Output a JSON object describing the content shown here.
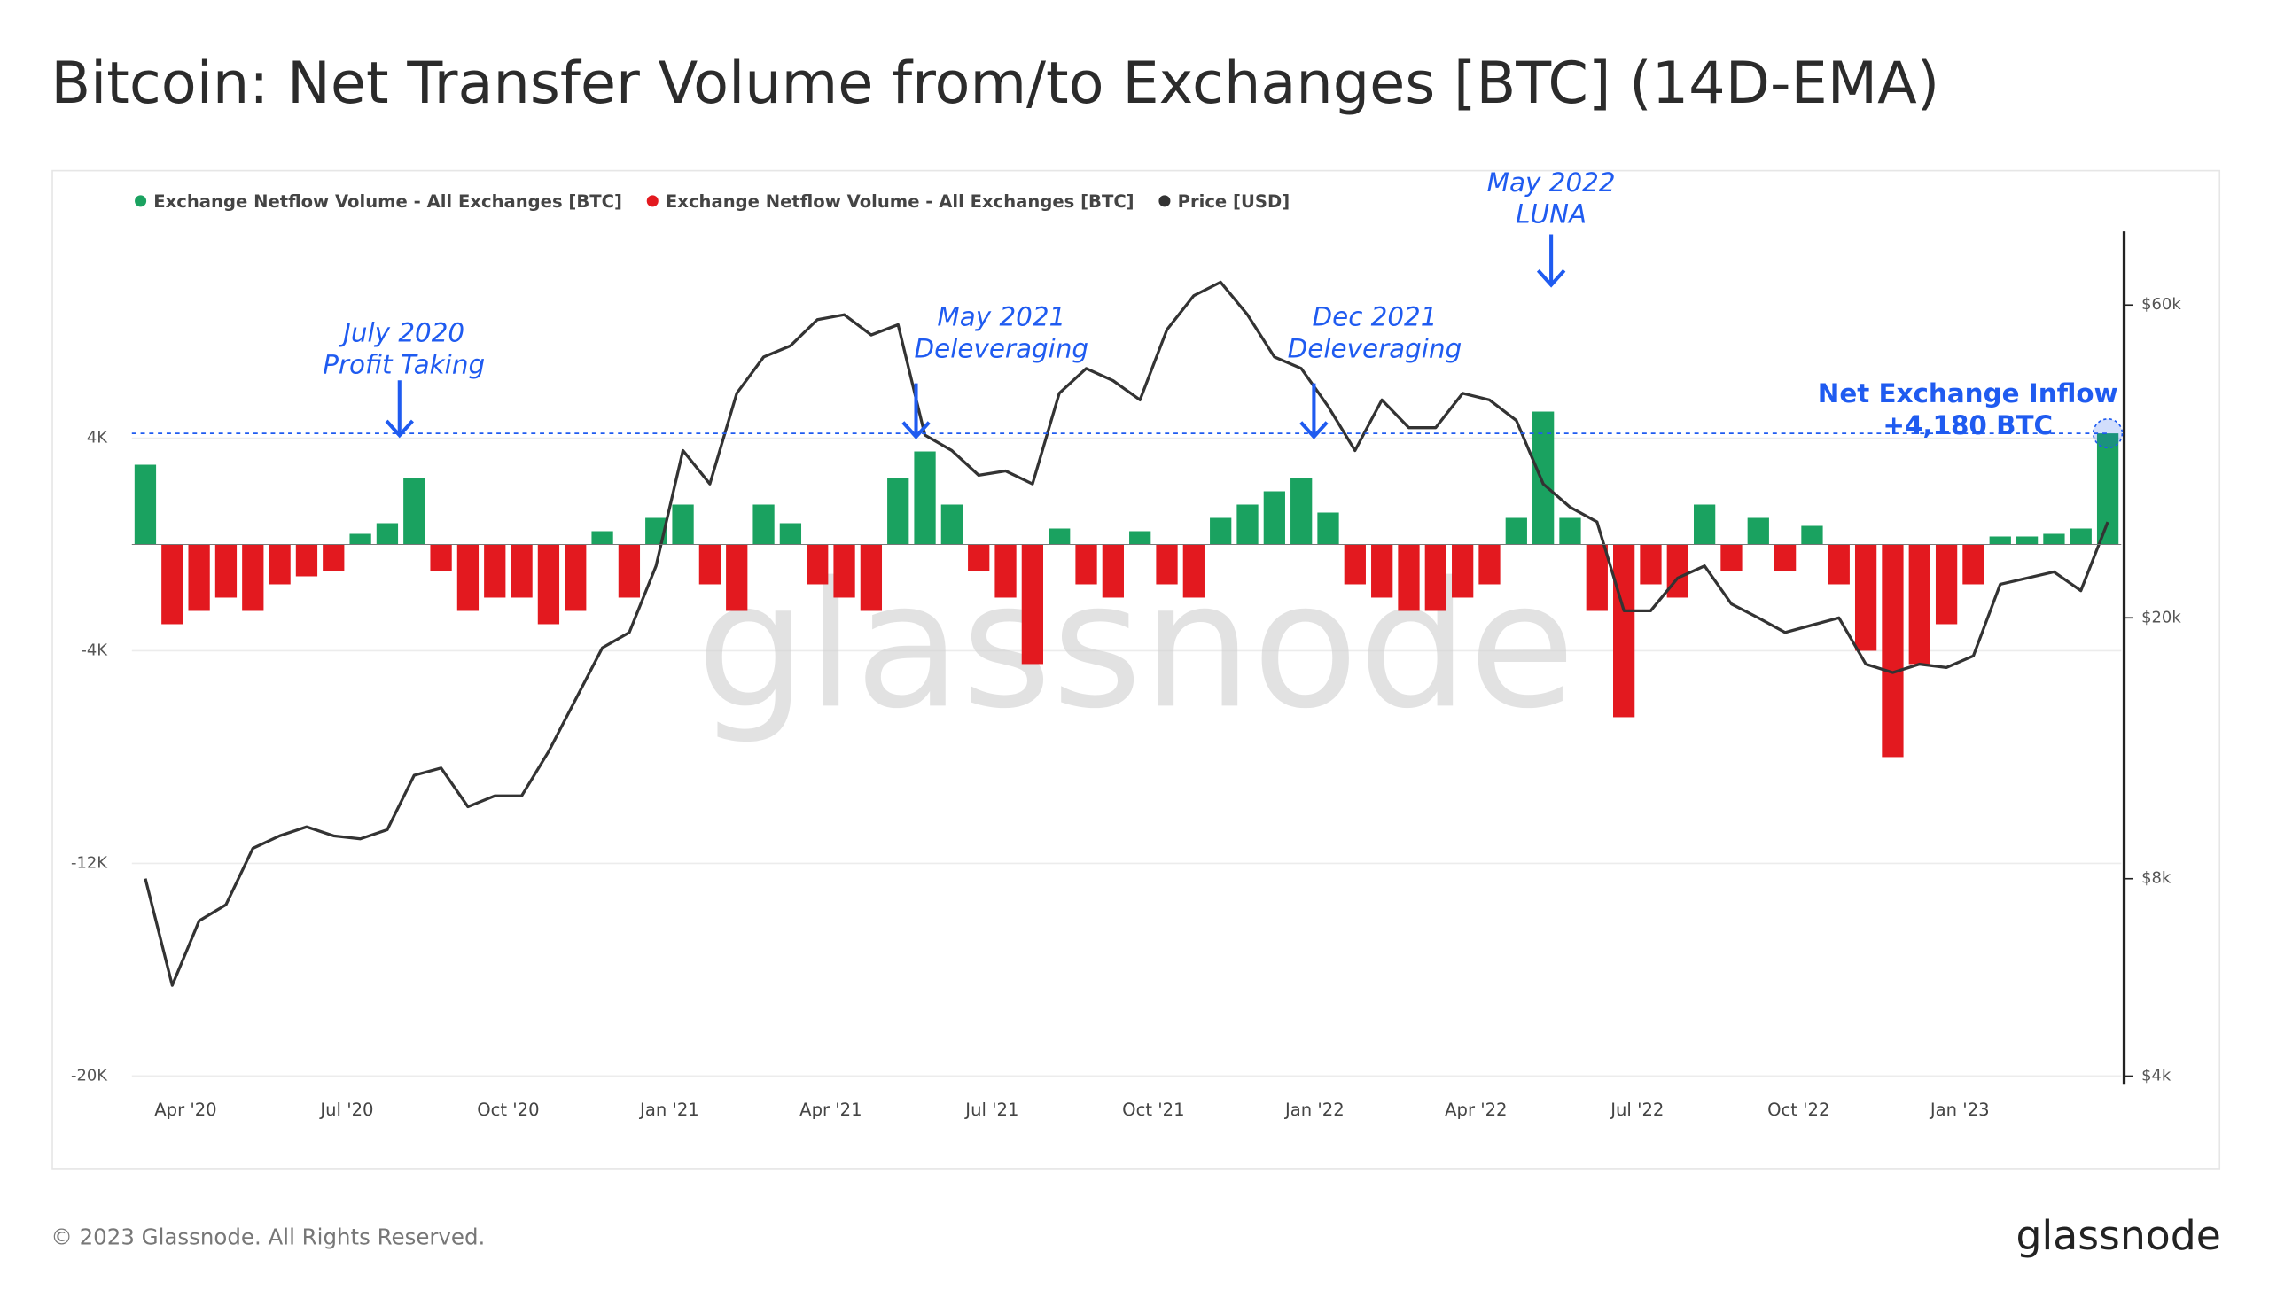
{
  "chart_data": {
    "type": "bar-line",
    "title": "Bitcoin: Net Transfer Volume from/to Exchanges [BTC] (14D-EMA)",
    "watermark": "glassnode",
    "categories": [
      null,
      null,
      "Apr '20",
      null,
      null,
      null,
      null,
      null,
      "Jul '20",
      null,
      null,
      null,
      null,
      null,
      "Oct '20",
      null,
      null,
      null,
      null,
      null,
      "Jan '21",
      null,
      null,
      null,
      null,
      null,
      "Apr '21",
      null,
      null,
      null,
      null,
      null,
      "Jul '21",
      null,
      null,
      null,
      null,
      null,
      "Oct '21",
      null,
      null,
      null,
      null,
      null,
      "Jan '22",
      null,
      null,
      null,
      null,
      null,
      "Apr '22",
      null,
      null,
      null,
      null,
      null,
      "Jul '22",
      null,
      null,
      null,
      null,
      null,
      "Oct '22",
      null,
      null,
      null,
      null,
      null,
      "Jan '23",
      null,
      null,
      null,
      null,
      null
    ],
    "series": [
      {
        "name": "Exchange Netflow Volume - All Exchanges [BTC]",
        "color": "#1aa260",
        "values": [
          3000,
          null,
          null,
          null,
          null,
          null,
          null,
          null,
          400,
          800,
          2500,
          null,
          null,
          null,
          null,
          null,
          null,
          500,
          null,
          1000,
          1500,
          null,
          null,
          1500,
          800,
          null,
          null,
          null,
          2500,
          3500,
          1500,
          null,
          null,
          null,
          600,
          null,
          null,
          500,
          null,
          null,
          1000,
          1500,
          2000,
          2500,
          1200,
          null,
          null,
          null,
          null,
          null,
          null,
          1000,
          5000,
          1000,
          null,
          null,
          null,
          null,
          1500,
          null,
          1000,
          null,
          700,
          null,
          null,
          null,
          null,
          null,
          null,
          300,
          300,
          400,
          600,
          4180
        ]
      },
      {
        "name": "Exchange Netflow Volume - All Exchanges [BTC]",
        "color": "#e3191f",
        "values": [
          null,
          -3000,
          -2500,
          -2000,
          -2500,
          -1500,
          -1200,
          -1000,
          null,
          null,
          null,
          -1000,
          -2500,
          -2000,
          -2000,
          -3000,
          -2500,
          null,
          -2000,
          null,
          null,
          -1500,
          -2500,
          null,
          null,
          -1500,
          -2000,
          -2500,
          null,
          null,
          null,
          -1000,
          -2000,
          -4500,
          null,
          -1500,
          -2000,
          null,
          -1500,
          -2000,
          null,
          null,
          null,
          null,
          null,
          -1500,
          -2000,
          -2500,
          -2500,
          -2000,
          -1500,
          null,
          null,
          null,
          -2500,
          -6500,
          -1500,
          -2000,
          null,
          -1000,
          null,
          -1000,
          null,
          -1500,
          -4000,
          -8000,
          -4500,
          -3000,
          -1500,
          null,
          null,
          null,
          null,
          null
        ]
      },
      {
        "name": "Price [USD]",
        "color": "#333333",
        "axis": "y2",
        "values": [
          8000,
          5500,
          6900,
          7300,
          8900,
          9300,
          9600,
          9300,
          9200,
          9500,
          11500,
          11800,
          10300,
          10700,
          10700,
          12500,
          15000,
          18000,
          19000,
          24000,
          36000,
          32000,
          44000,
          50000,
          52000,
          57000,
          58000,
          54000,
          56000,
          38000,
          36000,
          33000,
          33500,
          32000,
          44000,
          48000,
          46000,
          43000,
          55000,
          62000,
          65000,
          58000,
          50000,
          48000,
          42000,
          36000,
          43000,
          39000,
          39000,
          44000,
          43000,
          40000,
          32000,
          29500,
          28000,
          20500,
          20500,
          23000,
          24000,
          21000,
          20000,
          19000,
          19500,
          20000,
          17000,
          16500,
          17000,
          16800,
          17500,
          22500,
          23000,
          23500,
          22000,
          28000
        ]
      }
    ],
    "ylim": [
      -20330,
      11780
    ],
    "yticks": [
      {
        "value": 4000,
        "label": "4K"
      },
      {
        "value": -4000,
        "label": "-4K"
      },
      {
        "value": -12000,
        "label": "-12K"
      },
      {
        "value": -20000,
        "label": "-20K"
      }
    ],
    "y2lim": [
      3880,
      77700
    ],
    "y2scale": "log",
    "y2ticks": [
      {
        "value": 4000,
        "label": "$4k"
      },
      {
        "value": 8000,
        "label": "$8k"
      },
      {
        "value": 20000,
        "label": "$20k"
      },
      {
        "value": 60000,
        "label": "$60k"
      }
    ],
    "grid": true,
    "annotations": [
      {
        "lines": [
          "July 2020",
          "Profit Taking"
        ]
      },
      {
        "lines": [
          "May 2021",
          "Deleveraging"
        ]
      },
      {
        "lines": [
          "Dec 2021",
          "Deleveraging"
        ]
      },
      {
        "lines": [
          "May 2022",
          "LUNA"
        ]
      },
      {
        "lines": [
          "Net Exchange Inflow",
          "+4,180 BTC"
        ]
      }
    ]
  },
  "footer": {
    "copyright": "© 2023 Glassnode. All Rights Reserved.",
    "logo": "glassnode"
  }
}
